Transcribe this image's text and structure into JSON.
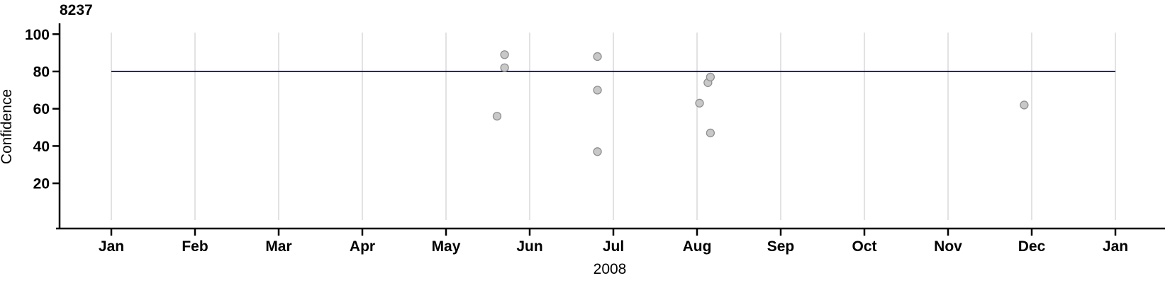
{
  "chart_data": {
    "type": "scatter",
    "title": "8237",
    "xlabel": "2008",
    "ylabel": "Confidence",
    "x_axis": {
      "tick_labels": [
        "Jan",
        "Feb",
        "Mar",
        "Apr",
        "May",
        "Jun",
        "Jul",
        "Aug",
        "Sep",
        "Oct",
        "Nov",
        "Dec",
        "Jan"
      ],
      "unit": "month of 2008, ending at Jan 2009"
    },
    "y_axis": {
      "ticks": [
        20,
        40,
        60,
        80,
        100
      ],
      "range_shown": [
        -4,
        106
      ],
      "label": "Confidence"
    },
    "grid": "vertical gridlines at each month tick",
    "legend": "none",
    "reference_line": {
      "value": 80,
      "orientation": "horizontal",
      "color": "#0000cc"
    },
    "points": [
      {
        "approx_date": "May 20",
        "x_month_fraction": 4.61,
        "confidence": 56
      },
      {
        "approx_date": "May 22",
        "x_month_fraction": 4.7,
        "confidence": 82
      },
      {
        "approx_date": "May 22",
        "x_month_fraction": 4.7,
        "confidence": 89
      },
      {
        "approx_date": "Jun 25",
        "x_month_fraction": 5.81,
        "confidence": 37
      },
      {
        "approx_date": "Jun 25",
        "x_month_fraction": 5.81,
        "confidence": 70
      },
      {
        "approx_date": "Jun 25",
        "x_month_fraction": 5.81,
        "confidence": 88
      },
      {
        "approx_date": "Aug 2",
        "x_month_fraction": 7.03,
        "confidence": 63
      },
      {
        "approx_date": "Aug 4",
        "x_month_fraction": 7.13,
        "confidence": 74
      },
      {
        "approx_date": "Aug 5",
        "x_month_fraction": 7.16,
        "confidence": 77
      },
      {
        "approx_date": "Aug 5",
        "x_month_fraction": 7.16,
        "confidence": 47
      },
      {
        "approx_date": "Nov 28",
        "x_month_fraction": 10.91,
        "confidence": 62
      }
    ],
    "marker": {
      "shape": "circle",
      "fill": "#c8c8c8",
      "stroke": "#8f8f8f"
    }
  },
  "colors": {
    "background": "#ffffff",
    "axis": "#000000",
    "gridline": "#d9d9d9",
    "reference_line": "#0000cc",
    "point_fill": "#c8c8c8",
    "point_stroke": "#8f8f8f"
  }
}
